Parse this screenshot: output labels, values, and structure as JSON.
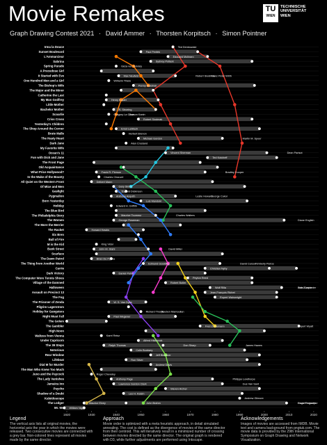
{
  "header": {
    "title": "Movie Remakes",
    "contest": "Graph Drawing Contest 2021",
    "authors": [
      "David Ammer",
      "Thorsten Korpitsch",
      "Simon Pointner"
    ],
    "separator": "·"
  },
  "logo": {
    "mark": "TU",
    "mark_sub": "WIEN",
    "lines": [
      "TECHNISCHE",
      "UNIVERSITÄT",
      "WIEN"
    ]
  },
  "colors": {
    "background": "#000000",
    "track": "#3a3a3a",
    "text": "#ffffff",
    "edge": "#cfcfcf",
    "director_red": "#e8372a",
    "director_orange": "#ff7a00",
    "director_green": "#29c05a",
    "director_lightgreen": "#7be04a",
    "director_blue": "#2f7dff",
    "director_cyan": "#25c6e0",
    "director_purple": "#8b3ff0",
    "director_magenta": "#ff3cd0",
    "director_yellow": "#f2d01c",
    "director_gold": "#d8b84a"
  },
  "chart_data": {
    "type": "timeline",
    "x_axis": {
      "ticks": [
        1920,
        1930,
        1940,
        1950,
        1960,
        1970,
        1980,
        1990,
        2000,
        2010,
        2020
      ],
      "range": [
        1920,
        2022
      ]
    },
    "rows": [
      {
        "title": "Irma la Douce",
        "films": [
          {
            "year": 1963,
            "dir": "Billy Wilder"
          }
        ],
        "labels": [
          "Ted Demkowski"
        ]
      },
      {
        "title": "Sunset Boulevard",
        "films": [
          {
            "year": 1950
          },
          {
            "year": 1973
          }
        ],
        "labels": [
          "Paul Penfek"
        ]
      },
      {
        "title": "L'Ammarcieur",
        "films": [
          {
            "year": 1961
          },
          {
            "year": 1977
          }
        ],
        "labels": [
          "Edouard Molinaro"
        ]
      },
      {
        "title": "Sabrina",
        "films": [
          {
            "year": 1954
          },
          {
            "year": 1995
          }
        ],
        "labels": [
          "Sydney Pollack"
        ]
      },
      {
        "title": "Spring Parade",
        "films": [
          {
            "year": 1940
          }
        ],
        "labels": [
          "Géza von Bolváry"
        ]
      },
      {
        "title": "A Precedose Girl",
        "films": [
          {
            "year": 1934
          },
          {
            "year": 1955
          }
        ],
        "labels": []
      },
      {
        "title": "It Started with Eve",
        "films": [
          {
            "year": 1941
          },
          {
            "year": 1964
          }
        ],
        "labels": [
          "Max Neufeld",
          "Robert Siodmak",
          "Franz Peter Wirth"
        ]
      },
      {
        "title": "One Hundred Men and a Girl",
        "films": [
          {
            "year": 1937
          }
        ],
        "labels": [
          "Wilhelm Thiele"
        ]
      },
      {
        "title": "The Bishop's Wife",
        "films": [
          {
            "year": 1947
          },
          {
            "year": 1996
          }
        ],
        "labels": [
          "Penny Marshall"
        ]
      },
      {
        "title": "The Major and the Minor",
        "films": [
          {
            "year": 1942
          },
          {
            "year": 1955
          }
        ],
        "labels": []
      },
      {
        "title": "Catherine the Last",
        "films": [
          {
            "year": 1936
          }
        ],
        "labels": []
      },
      {
        "title": "My Man Godfrey",
        "films": [
          {
            "year": 1936
          },
          {
            "year": 1957
          }
        ],
        "labels": [
          "Henry Koster"
        ]
      },
      {
        "title": "Little Mother",
        "films": [
          {
            "year": 1935
          }
        ],
        "labels": []
      },
      {
        "title": "Bachelor Mother",
        "films": [
          {
            "year": 1939
          },
          {
            "year": 1956
          }
        ],
        "labels": [
          "R. Stroeing"
        ]
      },
      {
        "title": "Scoarlie",
        "films": [
          {
            "year": 1937
          }
        ],
        "labels": [
          "Gregory La Cava",
          "Garson Kanin"
        ]
      },
      {
        "title": "Criss Cross",
        "films": [
          {
            "year": 1949
          },
          {
            "year": 1995
          }
        ],
        "labels": [
          "Robert Siodmak"
        ]
      },
      {
        "title": "Yesterday's Children",
        "films": [
          {
            "year": 1936
          }
        ],
        "labels": []
      },
      {
        "title": "The Shop Around the Corner",
        "films": [
          {
            "year": 1940
          },
          {
            "year": 1998
          }
        ],
        "labels": [
          "Ernst Lubitsch"
        ]
      },
      {
        "title": "Brute Malle",
        "films": [
          {
            "year": 1943
          }
        ],
        "labels": [
          "Herbert Brenon"
        ]
      },
      {
        "title": "The Hasty Heart",
        "films": [
          {
            "year": 1949
          },
          {
            "year": 1983
          }
        ],
        "labels": [
          "Michael Gordon",
          "Martin M. Speer"
        ]
      },
      {
        "title": "Dark Jane",
        "films": [
          {
            "year": 1944
          }
        ],
        "labels": [
          "Alan Crosland"
        ]
      },
      {
        "title": "My Favorite Wife",
        "films": [
          {
            "year": 1940
          },
          {
            "year": 1963
          }
        ],
        "labels": []
      },
      {
        "title": "Ocean's 11",
        "films": [
          {
            "year": 1960
          },
          {
            "year": 2001
          }
        ],
        "labels": [
          "Vincent Sherman",
          "Dean Parisot"
        ]
      },
      {
        "title": "Fun with Dick and Jane",
        "films": [
          {
            "year": 1977
          },
          {
            "year": 2005
          }
        ],
        "labels": [
          "Ted Kotcheff"
        ]
      },
      {
        "title": "The Front Page",
        "films": [
          {
            "year": 1931
          },
          {
            "year": 1974
          }
        ],
        "labels": []
      },
      {
        "title": "Old Acquaintance",
        "films": [
          {
            "year": 1943
          },
          {
            "year": 1981
          }
        ],
        "labels": []
      },
      {
        "title": "What Price Hollywood?",
        "films": [
          {
            "year": 1932
          },
          {
            "year": 1976
          }
        ],
        "labels": [
          "Frank R. Pierson",
          "Bradley Cooper"
        ]
      },
      {
        "title": "In the Wake of the Bounty",
        "films": [
          {
            "year": 1933
          }
        ],
        "labels": [
          "Charles Chauvel"
        ]
      },
      {
        "title": "All Quiet on the Western Front",
        "films": [
          {
            "year": 1930
          },
          {
            "year": 1979
          }
        ],
        "labels": [
          "Delbert Mann"
        ]
      },
      {
        "title": "Of Mice and Men",
        "films": [
          {
            "year": 1939
          },
          {
            "year": 1992
          }
        ],
        "labels": [
          "Gary Sinise"
        ]
      },
      {
        "title": "Gaslight",
        "films": [
          {
            "year": 1940
          },
          {
            "year": 1944
          }
        ],
        "labels": [
          "Thorold Dickinson"
        ]
      },
      {
        "title": "Pygmalion",
        "films": [
          {
            "year": 1938
          },
          {
            "year": 1964
          }
        ],
        "labels": [
          "Anthony Asquith",
          "Leslie Howard",
          "George Cukor"
        ]
      },
      {
        "title": "Born Yesterday",
        "films": [
          {
            "year": 1950
          },
          {
            "year": 1993
          }
        ],
        "labels": [
          "Luis Mandoki"
        ]
      },
      {
        "title": "Holiday",
        "films": [
          {
            "year": 1938
          }
        ],
        "labels": [
          "Edward H. Griffith"
        ]
      },
      {
        "title": "The Blue Bird",
        "films": [
          {
            "year": 1940
          },
          {
            "year": 1976
          }
        ],
        "labels": []
      },
      {
        "title": "The Philadelphia Story",
        "films": [
          {
            "year": 1940
          },
          {
            "year": 1956
          }
        ],
        "labels": [
          "Maurice Tourneur",
          "Charles Walters"
        ]
      },
      {
        "title": "The Women",
        "films": [
          {
            "year": 1939
          },
          {
            "year": 2008
          }
        ],
        "labels": [
          "George Roseman",
          "Diane English"
        ]
      },
      {
        "title": "The More the Merrier",
        "films": [
          {
            "year": 1943
          },
          {
            "year": 1966
          }
        ],
        "labels": []
      },
      {
        "title": "The Racket",
        "films": [
          {
            "year": 1928
          },
          {
            "year": 1951
          }
        ],
        "labels": [
          "Howard Hawks"
        ]
      },
      {
        "title": "Six Bren",
        "films": [
          {
            "year": 1949
          }
        ],
        "labels": []
      },
      {
        "title": "Ball of Fire",
        "films": [
          {
            "year": 1941
          },
          {
            "year": 1948
          }
        ],
        "labels": []
      },
      {
        "title": "M is the Kid",
        "films": [
          {
            "year": 1932
          }
        ],
        "labels": [
          "King Vidor"
        ]
      },
      {
        "title": "Bank Street",
        "films": [
          {
            "year": 1931
          },
          {
            "year": 1953
          }
        ],
        "labels": [
          "John M. Stahl",
          "David Miller"
        ]
      },
      {
        "title": "Scarface",
        "films": [
          {
            "year": 1932
          },
          {
            "year": 1983
          }
        ],
        "labels": []
      },
      {
        "title": "The Dawn Patrol",
        "films": [
          {
            "year": 1930
          },
          {
            "year": 1938
          }
        ],
        "labels": [
          "Brian De Palma"
        ]
      },
      {
        "title": "The Thing from Another World",
        "films": [
          {
            "year": 1951
          },
          {
            "year": 1982
          }
        ],
        "labels": [
          "Edmund Goulding",
          "David Carson",
          "Kimberly Peirce"
        ]
      },
      {
        "title": "Carrie",
        "films": [
          {
            "year": 1976
          },
          {
            "year": 2002
          },
          {
            "year": 2013
          }
        ],
        "labels": [
          "Christian Nyby"
        ]
      },
      {
        "title": "Dark Victory",
        "films": [
          {
            "year": 1939
          },
          {
            "year": 1976
          }
        ],
        "labels": [
          "Daniel Petrie"
        ]
      },
      {
        "title": "The Computer Wore Tennis Shoes",
        "films": [
          {
            "year": 1969
          },
          {
            "year": 1995
          }
        ],
        "labels": [
          "Peyton Reed"
        ]
      },
      {
        "title": "Village of the Damned",
        "films": [
          {
            "year": 1960
          },
          {
            "year": 1995
          }
        ],
        "labels": [
          "Robert Butler"
        ]
      },
      {
        "title": "Halloween",
        "films": [
          {
            "year": 1978
          },
          {
            "year": 2007
          }
        ],
        "labels": [
          "Wolf Rilla",
          "John Carpenter",
          "Rob Zombie"
        ]
      },
      {
        "title": "Assault on Precinct 13",
        "films": [
          {
            "year": 1976
          },
          {
            "year": 2005
          }
        ],
        "labels": [
          "Jean-François Richet"
        ]
      },
      {
        "title": "The Fog",
        "films": [
          {
            "year": 1980
          },
          {
            "year": 2005
          }
        ],
        "labels": [
          "Rupert Wainwright"
        ]
      },
      {
        "title": "The Prisoner of Zenda",
        "films": [
          {
            "year": 1937
          },
          {
            "year": 1952
          }
        ],
        "labels": [
          "W. S. Van Dyke"
        ]
      },
      {
        "title": "Pilgrim Lagerstrom",
        "films": [
          {
            "year": 1945
          }
        ],
        "labels": []
      },
      {
        "title": "Holiday for Gangsters",
        "films": [
          {
            "year": 1950
          }
        ],
        "labels": [
          "Richard Thorpe",
          "Rouben Mamoulian"
        ]
      },
      {
        "title": "Night Must Fall",
        "films": [
          {
            "year": 1937
          },
          {
            "year": 1964
          }
        ],
        "labels": [
          "Paul Wegener"
        ]
      },
      {
        "title": "The Golem",
        "films": [
          {
            "year": 1920
          },
          {
            "year": 1936
          }
        ],
        "labels": []
      },
      {
        "title": "The Gambler",
        "films": [
          {
            "year": 1974
          },
          {
            "year": 2014
          }
        ],
        "labels": [
          "Fred Zinnemann",
          "Rupert Wyatt"
        ]
      },
      {
        "title": "High Noon",
        "films": [
          {
            "year": 1952
          },
          {
            "year": 2000
          }
        ],
        "labels": []
      },
      {
        "title": "Waltzes from Vienna",
        "films": [
          {
            "year": 1934
          }
        ],
        "labels": [
          "Karel Reisz"
        ]
      },
      {
        "title": "Under Capricorn",
        "films": [
          {
            "year": 1949
          },
          {
            "year": 1983
          }
        ],
        "labels": [
          "Alfred Hitchcock"
        ]
      },
      {
        "title": "The 39 Steps",
        "films": [
          {
            "year": 1935
          },
          {
            "year": 1959
          },
          {
            "year": 1978
          }
        ],
        "labels": [
          "Ralph Thomas",
          "Don Sharp",
          "James Hawes"
        ]
      },
      {
        "title": "Notorious",
        "films": [
          {
            "year": 1946
          },
          {
            "year": 1992
          }
        ],
        "labels": [
          "Colin Bucksey"
        ]
      },
      {
        "title": "Rear Window",
        "films": [
          {
            "year": 1954
          },
          {
            "year": 1998
          }
        ],
        "labels": [
          "Jeff Bleckner"
        ]
      },
      {
        "title": "Lifeboat",
        "films": [
          {
            "year": 1944
          },
          {
            "year": 1993
          }
        ],
        "labels": [
          "Ron Silver"
        ]
      },
      {
        "title": "Dial M for Murder",
        "films": [
          {
            "year": 1954
          },
          {
            "year": 1998
          }
        ],
        "labels": [
          "Andrew Davis"
        ]
      },
      {
        "title": "The Man Who Knew Too Much",
        "films": [
          {
            "year": 1934
          },
          {
            "year": 1956
          }
        ],
        "labels": []
      },
      {
        "title": "Juno and the Paycock",
        "films": [
          {
            "year": 1930
          }
        ],
        "labels": [
          "Roger Cheveley"
        ]
      },
      {
        "title": "The Lady Vanishes",
        "films": [
          {
            "year": 1938
          },
          {
            "year": 1979
          }
        ],
        "labels": [
          "Anthony Page",
          "Philippe Lowthorpe"
        ]
      },
      {
        "title": "Jamaica Inn",
        "films": [
          {
            "year": 1939
          },
          {
            "year": 1983
          }
        ],
        "labels": [
          "Lawrence Gordon Clark",
          "Gus Van Sant"
        ]
      },
      {
        "title": "Psycho",
        "films": [
          {
            "year": 1960
          },
          {
            "year": 1998
          }
        ],
        "labels": [
          "Steven Archer"
        ]
      },
      {
        "title": "Shadow of a Doubt",
        "films": [
          {
            "year": 1943
          },
          {
            "year": 1991
          }
        ],
        "labels": [
          "Leo H. Katzin"
        ]
      },
      {
        "title": "Kaleidoscope",
        "films": [
          {
            "year": 1990
          }
        ],
        "labels": [
          "Andrew Gilmore"
        ]
      },
      {
        "title": "The Lodger",
        "films": [
          {
            "year": 1927
          },
          {
            "year": 1944
          },
          {
            "year": 2009
          }
        ],
        "labels": [
          "Maurice Elvey",
          "John Brahm",
          "Hugo Pregonese",
          "David Ondaatje"
        ]
      },
      {
        "title": "Mr. Wu",
        "films": [
          {
            "year": 1919
          },
          {
            "year": 1927
          }
        ],
        "labels": [
          "William Nigh"
        ]
      }
    ]
  },
  "footer": {
    "legend": {
      "heading": "Legend",
      "text": "The vertical axis lists all original movies, the horizontal axis the year in which the movies were released. Two consecutive movies are connected with a grey bar. Non-colored lines represent all movies made by the same director."
    },
    "approach": {
      "heading": "Approach",
      "text": "Movie order is optimized with a meta heuristic approach, in detail simulated annealing. The cost is defined as the divergence of movies of the same director from their centroid. This will iteratively result in a minimized number of crossing between movies directed by the same director. The original graph is rendered with D3, while further adjustments are performed using Inkscape."
    },
    "acknowledgements": {
      "heading": "Acknowledgements",
      "text": "Images of movies are accessed from IMDB. Movie text and camera background from pngtuk.com. The movie data is provided by the 29th International Symposium on Graph Drawing and Network Visualization."
    }
  }
}
